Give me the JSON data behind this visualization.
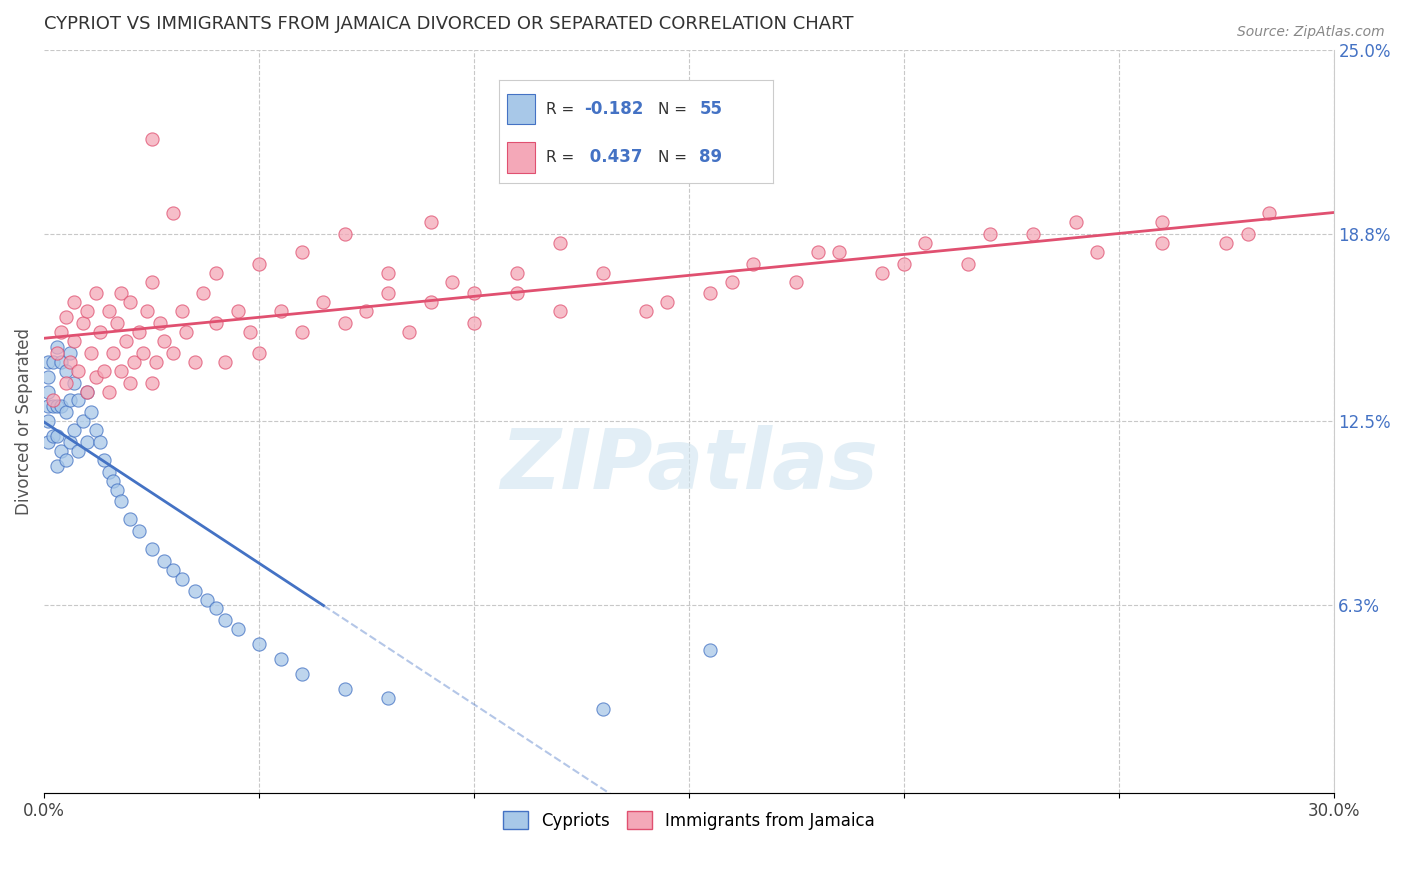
{
  "title": "CYPRIOT VS IMMIGRANTS FROM JAMAICA DIVORCED OR SEPARATED CORRELATION CHART",
  "source": "Source: ZipAtlas.com",
  "ylabel": "Divorced or Separated",
  "xlim": [
    0.0,
    0.3
  ],
  "ylim": [
    0.0,
    0.25
  ],
  "xticks": [
    0.0,
    0.05,
    0.1,
    0.15,
    0.2,
    0.25,
    0.3
  ],
  "xticklabels": [
    "0.0%",
    "",
    "",
    "",
    "",
    "",
    "30.0%"
  ],
  "ytick_right_labels": [
    "6.3%",
    "12.5%",
    "18.8%",
    "25.0%"
  ],
  "ytick_right_values": [
    0.063,
    0.125,
    0.188,
    0.25
  ],
  "color_cypriot": "#a8c8e8",
  "color_jamaica": "#f4a8b8",
  "line_color_cypriot": "#4472c4",
  "line_color_jamaica": "#e05070",
  "background_color": "#ffffff",
  "grid_color": "#c8c8c8",
  "cypriot_x": [
    0.001,
    0.001,
    0.001,
    0.001,
    0.001,
    0.001,
    0.002,
    0.002,
    0.002,
    0.003,
    0.003,
    0.003,
    0.003,
    0.004,
    0.004,
    0.004,
    0.005,
    0.005,
    0.005,
    0.006,
    0.006,
    0.006,
    0.007,
    0.007,
    0.008,
    0.008,
    0.009,
    0.01,
    0.01,
    0.011,
    0.012,
    0.013,
    0.014,
    0.015,
    0.016,
    0.017,
    0.018,
    0.02,
    0.022,
    0.025,
    0.028,
    0.03,
    0.032,
    0.035,
    0.038,
    0.04,
    0.042,
    0.045,
    0.05,
    0.055,
    0.06,
    0.07,
    0.08,
    0.13,
    0.155
  ],
  "cypriot_y": [
    0.118,
    0.125,
    0.13,
    0.135,
    0.14,
    0.145,
    0.12,
    0.13,
    0.145,
    0.11,
    0.12,
    0.13,
    0.15,
    0.115,
    0.13,
    0.145,
    0.112,
    0.128,
    0.142,
    0.118,
    0.132,
    0.148,
    0.122,
    0.138,
    0.115,
    0.132,
    0.125,
    0.118,
    0.135,
    0.128,
    0.122,
    0.118,
    0.112,
    0.108,
    0.105,
    0.102,
    0.098,
    0.092,
    0.088,
    0.082,
    0.078,
    0.075,
    0.072,
    0.068,
    0.065,
    0.062,
    0.058,
    0.055,
    0.05,
    0.045,
    0.04,
    0.035,
    0.032,
    0.028,
    0.048
  ],
  "jamaica_x": [
    0.002,
    0.003,
    0.004,
    0.005,
    0.005,
    0.006,
    0.007,
    0.007,
    0.008,
    0.009,
    0.01,
    0.01,
    0.011,
    0.012,
    0.012,
    0.013,
    0.014,
    0.015,
    0.015,
    0.016,
    0.017,
    0.018,
    0.018,
    0.019,
    0.02,
    0.02,
    0.021,
    0.022,
    0.023,
    0.024,
    0.025,
    0.025,
    0.026,
    0.027,
    0.028,
    0.03,
    0.032,
    0.033,
    0.035,
    0.037,
    0.04,
    0.042,
    0.045,
    0.048,
    0.05,
    0.055,
    0.06,
    0.065,
    0.07,
    0.075,
    0.08,
    0.085,
    0.09,
    0.095,
    0.1,
    0.11,
    0.12,
    0.13,
    0.145,
    0.155,
    0.165,
    0.175,
    0.185,
    0.195,
    0.205,
    0.215,
    0.23,
    0.245,
    0.26,
    0.275,
    0.285,
    0.025,
    0.03,
    0.04,
    0.05,
    0.06,
    0.07,
    0.08,
    0.09,
    0.1,
    0.11,
    0.12,
    0.14,
    0.16,
    0.18,
    0.2,
    0.22,
    0.24,
    0.26,
    0.28
  ],
  "jamaica_y": [
    0.132,
    0.148,
    0.155,
    0.138,
    0.16,
    0.145,
    0.152,
    0.165,
    0.142,
    0.158,
    0.135,
    0.162,
    0.148,
    0.14,
    0.168,
    0.155,
    0.142,
    0.135,
    0.162,
    0.148,
    0.158,
    0.142,
    0.168,
    0.152,
    0.138,
    0.165,
    0.145,
    0.155,
    0.148,
    0.162,
    0.138,
    0.172,
    0.145,
    0.158,
    0.152,
    0.148,
    0.162,
    0.155,
    0.145,
    0.168,
    0.158,
    0.145,
    0.162,
    0.155,
    0.148,
    0.162,
    0.155,
    0.165,
    0.158,
    0.162,
    0.168,
    0.155,
    0.165,
    0.172,
    0.158,
    0.168,
    0.162,
    0.175,
    0.165,
    0.168,
    0.178,
    0.172,
    0.182,
    0.175,
    0.185,
    0.178,
    0.188,
    0.182,
    0.192,
    0.185,
    0.195,
    0.22,
    0.195,
    0.175,
    0.178,
    0.182,
    0.188,
    0.175,
    0.192,
    0.168,
    0.175,
    0.185,
    0.162,
    0.172,
    0.182,
    0.178,
    0.188,
    0.192,
    0.185,
    0.188
  ]
}
